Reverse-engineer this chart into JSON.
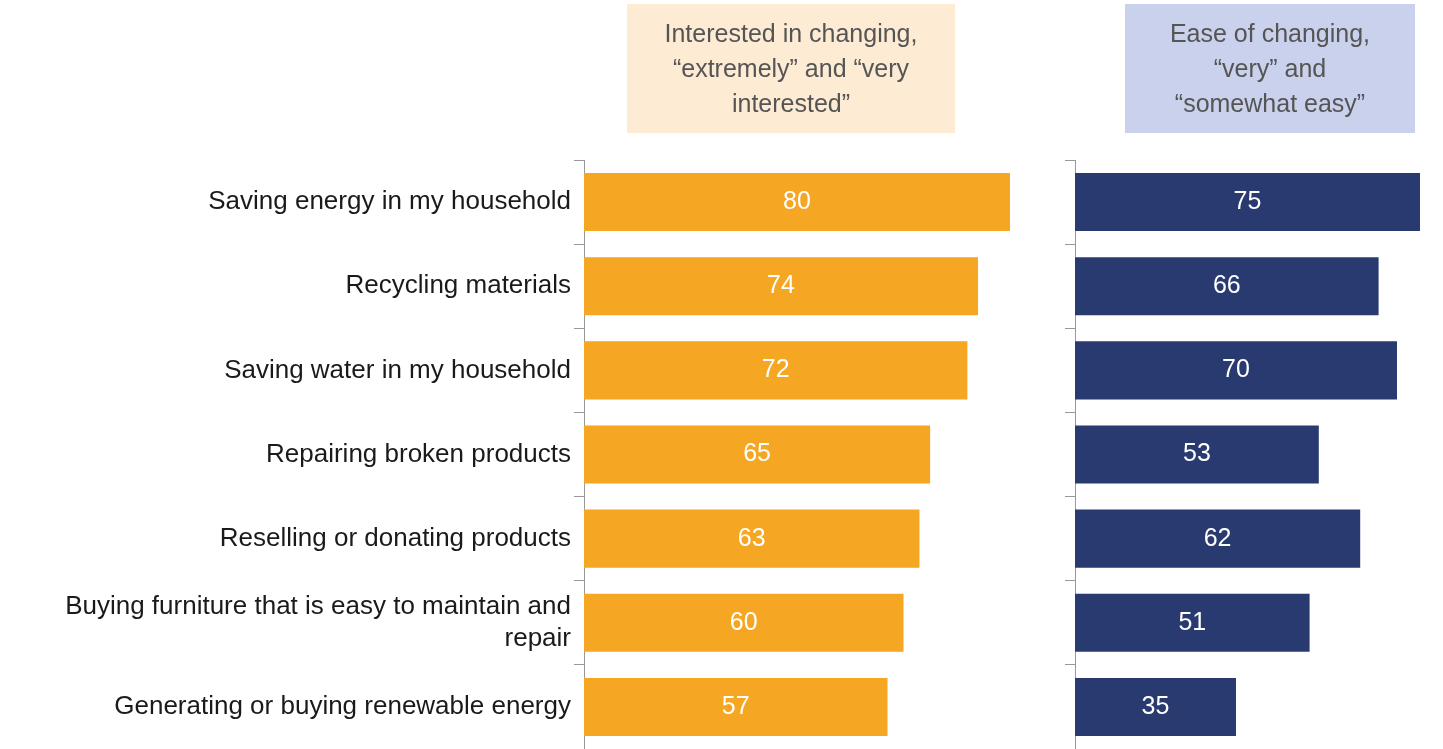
{
  "chart_data": [
    {
      "type": "bar",
      "orientation": "horizontal",
      "title": "Interested in changing, “extremely” and “very interested”",
      "categories": [
        "Saving energy in my household",
        "Recycling materials",
        "Saving water in my household",
        "Repairing broken products",
        "Reselling or donating products",
        "Buying furniture that is easy to maintain and repair",
        "Generating or buying renewable energy"
      ],
      "values": [
        80,
        74,
        72,
        65,
        63,
        60,
        57
      ],
      "color": "#f5a623",
      "data_labels": true,
      "tick_labels": "y",
      "grid": false,
      "legend": false
    },
    {
      "type": "bar",
      "orientation": "horizontal",
      "title": "Ease of changing, “very” and “somewhat easy”",
      "categories": [
        null,
        null,
        null,
        null,
        null,
        null,
        null
      ],
      "values": [
        75,
        66,
        70,
        53,
        62,
        51,
        35
      ],
      "color": "#293a70",
      "data_labels": true,
      "tick_labels": false,
      "grid": false,
      "legend": false
    }
  ]
}
